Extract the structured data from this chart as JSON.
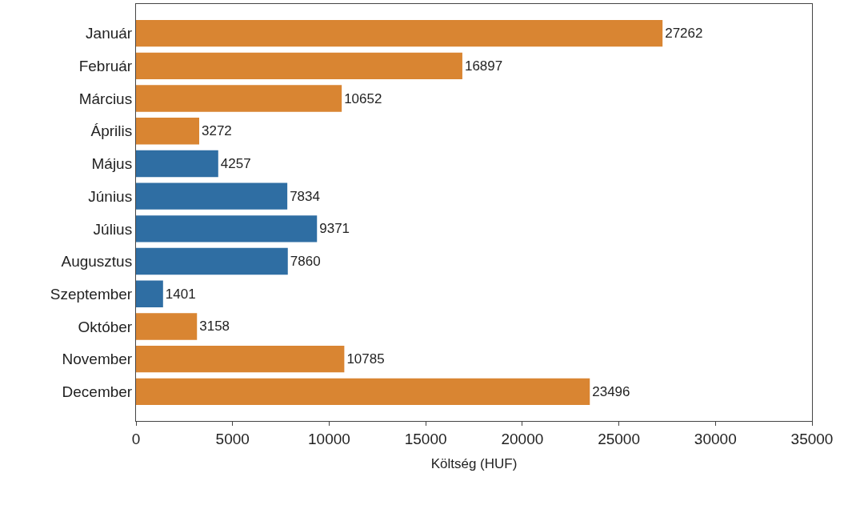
{
  "chart_data": {
    "type": "bar",
    "orientation": "horizontal",
    "xlabel": "Költség (HUF)",
    "categories": [
      "Január",
      "Február",
      "Március",
      "Április",
      "Május",
      "Június",
      "Július",
      "Augusztus",
      "Szeptember",
      "Október",
      "November",
      "December"
    ],
    "values": [
      27262,
      16897,
      10652,
      3272,
      4257,
      7834,
      9371,
      7860,
      1401,
      3158,
      10785,
      23496
    ],
    "colors": [
      "#d98532",
      "#d98532",
      "#d98532",
      "#d98532",
      "#2f6ea3",
      "#2f6ea3",
      "#2f6ea3",
      "#2f6ea3",
      "#2f6ea3",
      "#d98532",
      "#d98532",
      "#d98532"
    ],
    "xlim": [
      0,
      35000
    ],
    "xticks": [
      0,
      5000,
      10000,
      15000,
      20000,
      25000,
      30000,
      35000
    ],
    "data_labels": true
  }
}
